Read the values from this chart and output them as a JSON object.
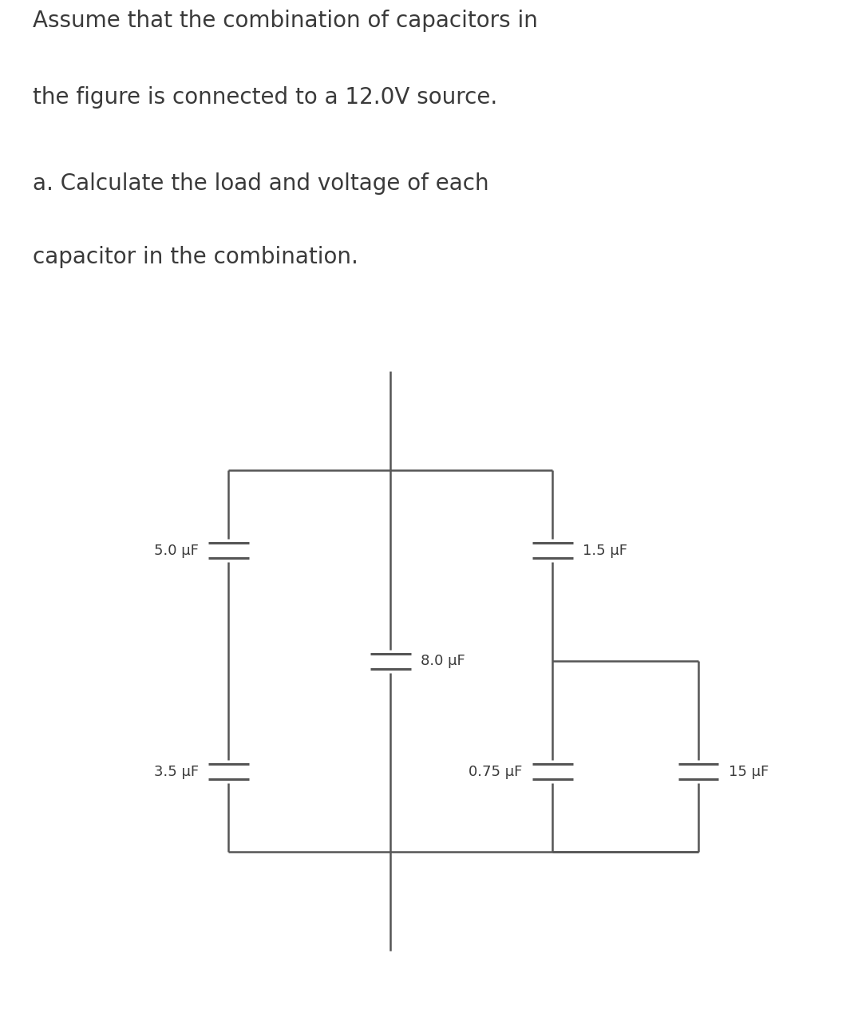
{
  "title_line1": "Assume that the combination of capacitors in",
  "title_line2": "the figure is connected to a 12.0V source.",
  "subtitle_line1": "a. Calculate the load and voltage of each",
  "subtitle_line2": "capacitor in the combination.",
  "title_fontsize": 20,
  "text_color": "#3a3a3a",
  "bg_color": "#ffffff",
  "circuit_bg": "#d4d4d4",
  "lc": "#555555",
  "lw": 1.8,
  "clw": 2.2,
  "cap_g": 0.1,
  "cap_hl": 0.25,
  "labels": {
    "C1": "5.0 μF",
    "C2": "3.5 μF",
    "C3": "8.0 μF",
    "C4": "1.5 μF",
    "C5": "0.75 μF",
    "C6": "15 μF"
  },
  "label_fontsize": 13
}
